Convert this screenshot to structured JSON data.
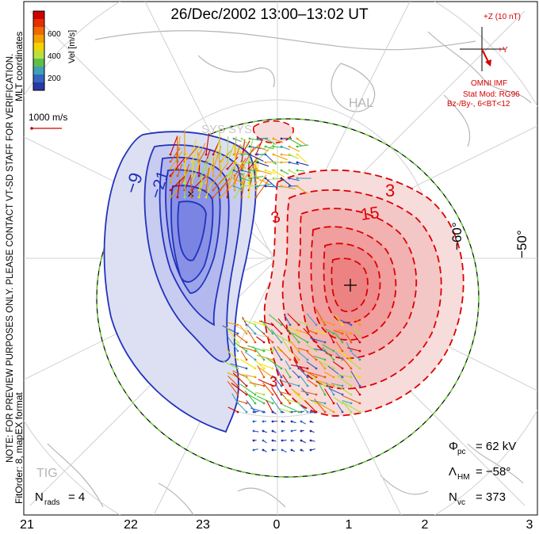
{
  "title": "26/Dec/2002 13:00–13:02 UT",
  "mlt_ticks": [
    "21",
    "22",
    "23",
    "0",
    "1",
    "2",
    "3"
  ],
  "lat_labels": [
    "−60°",
    "−50°"
  ],
  "stations": [
    "HAL",
    "SYS",
    "SYS",
    "TIG"
  ],
  "velocity_scale": {
    "title": "Vel [m/s]",
    "ticks": [
      "600",
      "400",
      "200"
    ],
    "colors": [
      "#d10000",
      "#e85a00",
      "#f0a000",
      "#f5e000",
      "#a8e040",
      "#40c040",
      "#40a0c0",
      "#3060c0",
      "#2030a0"
    ]
  },
  "reference_vector": "1000 m/s",
  "imf": {
    "label": "+Z (10 nT)",
    "y_label": "+Y",
    "source": "OMNI IMF",
    "model": "Stat Mod: RG96",
    "condition": "Bz-/By-, 6<BT<12"
  },
  "side_note": "NOTE: FOR PREVIEW PURPOSES ONLY. PLEASE CONTACT VT-SD STAFF FOR VERIFICATION.",
  "coords_note": "MLT coordinates",
  "fit_note": "FitOrder: 8, mapEX format",
  "contour_labels": {
    "neg_outer": "−9",
    "neg_inner": "−21",
    "pos_outer_a": "3",
    "pos_outer_b": "3",
    "pos_inner": "15",
    "pos_low": "3"
  },
  "stats": {
    "phi_label": "Φ",
    "phi_sub": "pc",
    "phi_value": "= 62 kV",
    "lambda_label": "Λ",
    "lambda_sub": "HM",
    "lambda_value": "= −58°",
    "nvc_label": "N",
    "nvc_sub": "vc",
    "nvc_value": "= 373",
    "nrads_label": "N",
    "nrads_sub": "rads",
    "nrads_value": "= 4"
  },
  "colors": {
    "negative": "#2233bb",
    "positive": "#dd0000",
    "boundary": "#66cc33"
  }
}
